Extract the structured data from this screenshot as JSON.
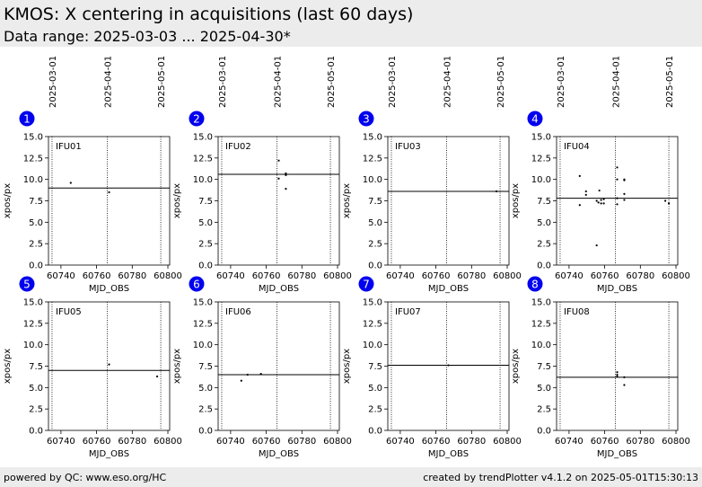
{
  "header": {
    "title": "KMOS: X centering in acquisitions (last 60 days)",
    "subtitle": "Data range: 2025-03-03 ... 2025-04-30*"
  },
  "footer": {
    "left": "powered by QC: www.eso.org/HC",
    "right": "created by trendPlotter v4.1.2 on 2025-05-01T15:30:13"
  },
  "colors": {
    "badge": "#0000ee",
    "badge_text": "#ffffff",
    "points": "#000000",
    "line": "#000000"
  },
  "chart_data": [
    {
      "type": "scatter",
      "panel": "1",
      "label": "IFU01",
      "xlabel": "MJD_OBS",
      "ylabel": "xpos/px",
      "xlim": [
        60733,
        60801
      ],
      "ylim": [
        0,
        15
      ],
      "xticks": [
        60740,
        60760,
        60780,
        60800
      ],
      "yticks": [
        0.0,
        2.5,
        5.0,
        7.5,
        10.0,
        12.5,
        15.0
      ],
      "date_markers": [
        {
          "label": "2025-03-01",
          "x": 60735
        },
        {
          "label": "2025-04-01",
          "x": 60766
        },
        {
          "label": "2025-05-01",
          "x": 60796
        }
      ],
      "reference_line": 9.0,
      "points": [
        {
          "x": 60745.5,
          "y": 9.6
        },
        {
          "x": 60767,
          "y": 8.5
        }
      ]
    },
    {
      "type": "scatter",
      "panel": "2",
      "label": "IFU02",
      "xlabel": "MJD_OBS",
      "ylabel": "xpos/px",
      "xlim": [
        60733,
        60801
      ],
      "ylim": [
        0,
        15
      ],
      "xticks": [
        60740,
        60760,
        60780,
        60800
      ],
      "yticks": [
        0.0,
        2.5,
        5.0,
        7.5,
        10.0,
        12.5,
        15.0
      ],
      "date_markers": [
        {
          "label": "2025-03-01",
          "x": 60735
        },
        {
          "label": "2025-04-01",
          "x": 60766
        },
        {
          "label": "2025-05-01",
          "x": 60796
        }
      ],
      "reference_line": 10.6,
      "points": [
        {
          "x": 60767,
          "y": 12.2
        },
        {
          "x": 60767,
          "y": 10.1
        },
        {
          "x": 60771,
          "y": 10.7
        },
        {
          "x": 60771,
          "y": 10.5
        },
        {
          "x": 60771,
          "y": 8.9
        }
      ]
    },
    {
      "type": "scatter",
      "panel": "3",
      "label": "IFU03",
      "xlabel": "MJD_OBS",
      "ylabel": "xpos/px",
      "xlim": [
        60733,
        60801
      ],
      "ylim": [
        0,
        15
      ],
      "xticks": [
        60740,
        60760,
        60780,
        60800
      ],
      "yticks": [
        0.0,
        2.5,
        5.0,
        7.5,
        10.0,
        12.5,
        15.0
      ],
      "date_markers": [
        {
          "label": "2025-03-01",
          "x": 60735
        },
        {
          "label": "2025-04-01",
          "x": 60766
        },
        {
          "label": "2025-05-01",
          "x": 60796
        }
      ],
      "reference_line": 8.6,
      "points": [
        {
          "x": 60794,
          "y": 8.6
        }
      ]
    },
    {
      "type": "scatter",
      "panel": "4",
      "label": "IFU04",
      "xlabel": "MJD_OBS",
      "ylabel": "xpos/px",
      "xlim": [
        60733,
        60801
      ],
      "ylim": [
        0,
        15
      ],
      "xticks": [
        60740,
        60760,
        60780,
        60800
      ],
      "yticks": [
        0.0,
        2.5,
        5.0,
        7.5,
        10.0,
        12.5,
        15.0
      ],
      "date_markers": [
        {
          "label": "2025-03-01",
          "x": 60735
        },
        {
          "label": "2025-04-01",
          "x": 60766
        },
        {
          "label": "2025-05-01",
          "x": 60796
        }
      ],
      "reference_line": 7.8,
      "points": [
        {
          "x": 60746,
          "y": 10.4
        },
        {
          "x": 60746,
          "y": 7.0
        },
        {
          "x": 60749.5,
          "y": 8.6
        },
        {
          "x": 60749.5,
          "y": 8.2
        },
        {
          "x": 60755.5,
          "y": 2.3
        },
        {
          "x": 60755.5,
          "y": 7.5
        },
        {
          "x": 60756.5,
          "y": 7.3
        },
        {
          "x": 60757,
          "y": 8.7
        },
        {
          "x": 60758,
          "y": 7.6
        },
        {
          "x": 60758,
          "y": 7.2
        },
        {
          "x": 60759.5,
          "y": 7.2
        },
        {
          "x": 60759.5,
          "y": 7.7
        },
        {
          "x": 60767,
          "y": 11.4
        },
        {
          "x": 60767,
          "y": 10.0
        },
        {
          "x": 60767,
          "y": 7.8
        },
        {
          "x": 60767,
          "y": 7.1
        },
        {
          "x": 60771,
          "y": 10.0
        },
        {
          "x": 60771,
          "y": 9.9
        },
        {
          "x": 60771,
          "y": 8.3
        },
        {
          "x": 60771,
          "y": 7.6
        },
        {
          "x": 60794,
          "y": 7.5
        },
        {
          "x": 60796,
          "y": 7.2
        }
      ]
    },
    {
      "type": "scatter",
      "panel": "5",
      "label": "IFU05",
      "xlabel": "MJD_OBS",
      "ylabel": "xpos/px",
      "xlim": [
        60733,
        60801
      ],
      "ylim": [
        0,
        15
      ],
      "xticks": [
        60740,
        60760,
        60780,
        60800
      ],
      "yticks": [
        0.0,
        2.5,
        5.0,
        7.5,
        10.0,
        12.5,
        15.0
      ],
      "date_markers": [
        {
          "label": "2025-03-01",
          "x": 60735
        },
        {
          "label": "2025-04-01",
          "x": 60766
        },
        {
          "label": "2025-05-01",
          "x": 60796
        }
      ],
      "reference_line": 7.0,
      "points": [
        {
          "x": 60767,
          "y": 7.7
        },
        {
          "x": 60794,
          "y": 6.3
        }
      ]
    },
    {
      "type": "scatter",
      "panel": "6",
      "label": "IFU06",
      "xlabel": "MJD_OBS",
      "ylabel": "xpos/px",
      "xlim": [
        60733,
        60801
      ],
      "ylim": [
        0,
        15
      ],
      "xticks": [
        60740,
        60760,
        60780,
        60800
      ],
      "yticks": [
        0.0,
        2.5,
        5.0,
        7.5,
        10.0,
        12.5,
        15.0
      ],
      "date_markers": [
        {
          "label": "2025-03-01",
          "x": 60735
        },
        {
          "label": "2025-04-01",
          "x": 60766
        },
        {
          "label": "2025-05-01",
          "x": 60796
        }
      ],
      "reference_line": 6.5,
      "points": [
        {
          "x": 60746,
          "y": 5.8
        },
        {
          "x": 60749.5,
          "y": 6.5
        },
        {
          "x": 60757,
          "y": 6.6
        }
      ]
    },
    {
      "type": "scatter",
      "panel": "7",
      "label": "IFU07",
      "xlabel": "MJD_OBS",
      "ylabel": "xpos/px",
      "xlim": [
        60733,
        60801
      ],
      "ylim": [
        0,
        15
      ],
      "xticks": [
        60740,
        60760,
        60780,
        60800
      ],
      "yticks": [
        0.0,
        2.5,
        5.0,
        7.5,
        10.0,
        12.5,
        15.0
      ],
      "date_markers": [
        {
          "label": "2025-03-01",
          "x": 60735
        },
        {
          "label": "2025-04-01",
          "x": 60766
        },
        {
          "label": "2025-05-01",
          "x": 60796
        }
      ],
      "reference_line": 7.6,
      "points": [
        {
          "x": 60767,
          "y": 7.6
        }
      ]
    },
    {
      "type": "scatter",
      "panel": "8",
      "label": "IFU08",
      "xlabel": "MJD_OBS",
      "ylabel": "xpos/px",
      "xlim": [
        60733,
        60801
      ],
      "ylim": [
        0,
        15
      ],
      "xticks": [
        60740,
        60760,
        60780,
        60800
      ],
      "yticks": [
        0.0,
        2.5,
        5.0,
        7.5,
        10.0,
        12.5,
        15.0
      ],
      "date_markers": [
        {
          "label": "2025-03-01",
          "x": 60735
        },
        {
          "label": "2025-04-01",
          "x": 60766
        },
        {
          "label": "2025-05-01",
          "x": 60796
        }
      ],
      "reference_line": 6.2,
      "points": [
        {
          "x": 60767,
          "y": 6.8
        },
        {
          "x": 60767,
          "y": 6.5
        },
        {
          "x": 60767,
          "y": 6.3
        },
        {
          "x": 60771,
          "y": 6.2
        },
        {
          "x": 60771,
          "y": 5.3
        }
      ]
    }
  ]
}
